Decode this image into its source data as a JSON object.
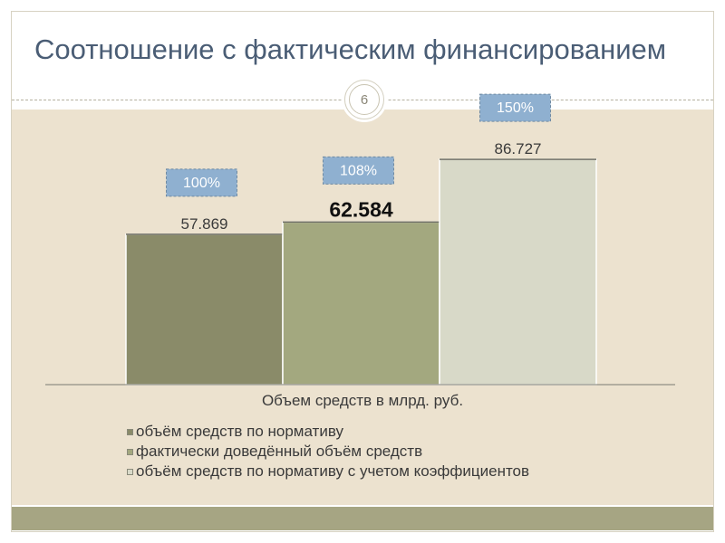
{
  "slide": {
    "title": "Соотношение с фактическим финансированием",
    "page_number": "6"
  },
  "colors": {
    "title": "#4a5d75",
    "content_background": "#ece2cf",
    "footer_band": "#a6a583",
    "badge_fill": "#8fb0d0"
  },
  "chart_data": {
    "type": "bar",
    "xlabel": "Объем средств в млрд. руб.",
    "ylabel": "",
    "ylim": [
      0,
      100
    ],
    "grid": false,
    "legend_position": "bottom",
    "series": [
      {
        "name": "объём средств по нормативу",
        "value": 57.869,
        "label": "57.869",
        "percent": "100%",
        "color": "#8a8b69",
        "label_bold": false
      },
      {
        "name": "фактически доведённый объём средств",
        "value": 62.584,
        "label": "62.584",
        "percent": "108%",
        "color": "#a3a87f",
        "label_bold": true
      },
      {
        "name": "объём средств по нормативу с учетом коэффициентов",
        "value": 86.727,
        "label": "86.727",
        "percent": "150%",
        "color": "#d8d9c8",
        "label_bold": false
      }
    ]
  }
}
